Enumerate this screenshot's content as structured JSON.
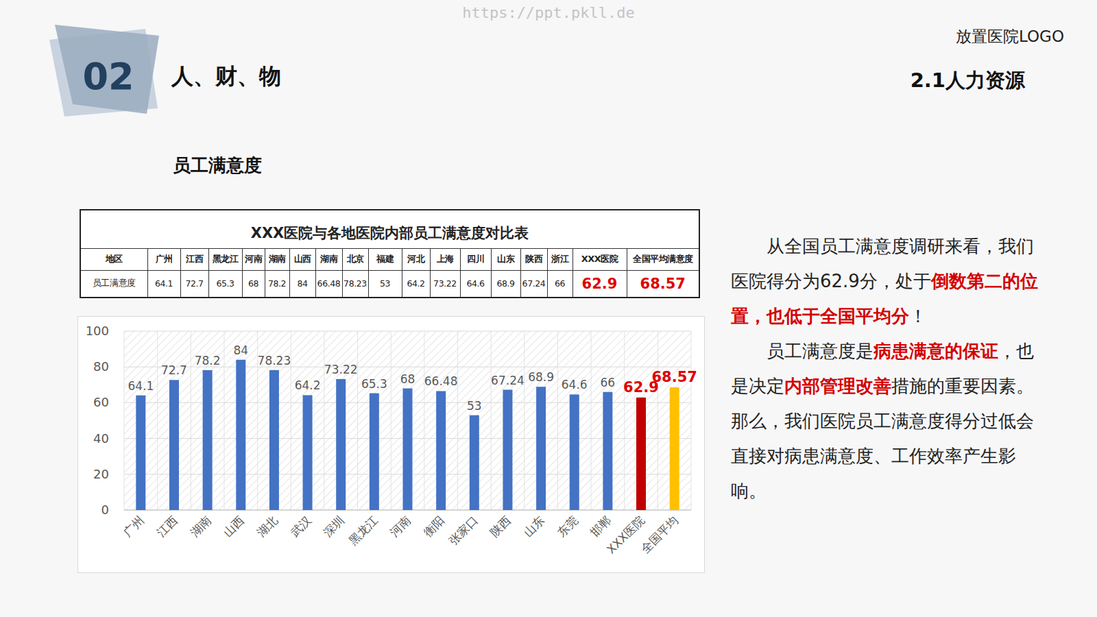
{
  "header": {
    "watermark": "https://ppt.pkll.de",
    "section_number": "02",
    "section_title": "人、财、物",
    "logo_placeholder": "放置医院LOGO",
    "subsection": "2.1人力资源",
    "heading": "员工满意度"
  },
  "table": {
    "title": "XXX医院与各地医院内部员工满意度对比表",
    "header": [
      "地区",
      "广州",
      "江西",
      "黑龙江",
      "河南",
      "湖南",
      "山西",
      "湖南",
      "北京",
      "福建",
      "河北",
      "上海",
      "四川",
      "山东",
      "陕西",
      "浙江",
      "XXX医院",
      "全国平均满意度"
    ],
    "rows": [
      [
        "员工满意度",
        64.1,
        72.7,
        65.3,
        68,
        78.2,
        84,
        66.48,
        78.23,
        53,
        64.2,
        73.22,
        64.6,
        68.9,
        67.24,
        66,
        62.9,
        68.57
      ]
    ]
  },
  "text": {
    "paragraphs": [
      [
        {
          "text": "从全国员工满意度调研来看，我们医院得分为62.9分，处于",
          "emphasis": false
        },
        {
          "text": "倒数第二的位置，也低于全国平均分",
          "emphasis": true
        },
        {
          "text": "！",
          "emphasis": false
        }
      ],
      [
        {
          "text": "员工满意度是",
          "emphasis": false
        },
        {
          "text": "病患满意的保证",
          "emphasis": true
        },
        {
          "text": "，也是决定",
          "emphasis": false
        },
        {
          "text": "内部管理改善",
          "emphasis": true
        },
        {
          "text": "措施的重要因素。那么，我们医院员工满意度得分过低会直接对病患满意度、工作效率产生影响。",
          "emphasis": false
        }
      ]
    ]
  },
  "chart_data": {
    "type": "bar",
    "categories": [
      "广州",
      "江西",
      "湖南",
      "山西",
      "湖北",
      "武汉",
      "深圳",
      "黑龙江",
      "河南",
      "衡阳",
      "张家口",
      "陕西",
      "山东",
      "东莞",
      "邯郸",
      "XXX医院",
      "全国平均"
    ],
    "values": [
      64.1,
      72.7,
      78.2,
      84,
      78.23,
      64.2,
      73.22,
      65.3,
      68,
      66.48,
      53,
      67.24,
      68.9,
      64.6,
      66,
      62.9,
      68.57
    ],
    "colors": [
      "#4472c4",
      "#4472c4",
      "#4472c4",
      "#4472c4",
      "#4472c4",
      "#4472c4",
      "#4472c4",
      "#4472c4",
      "#4472c4",
      "#4472c4",
      "#4472c4",
      "#4472c4",
      "#4472c4",
      "#4472c4",
      "#4472c4",
      "#c00000",
      "#ffc000"
    ],
    "ylim": [
      0,
      100
    ],
    "yticks": [
      0,
      20,
      40,
      60,
      80,
      100
    ],
    "grid": true,
    "data_labels": true
  }
}
